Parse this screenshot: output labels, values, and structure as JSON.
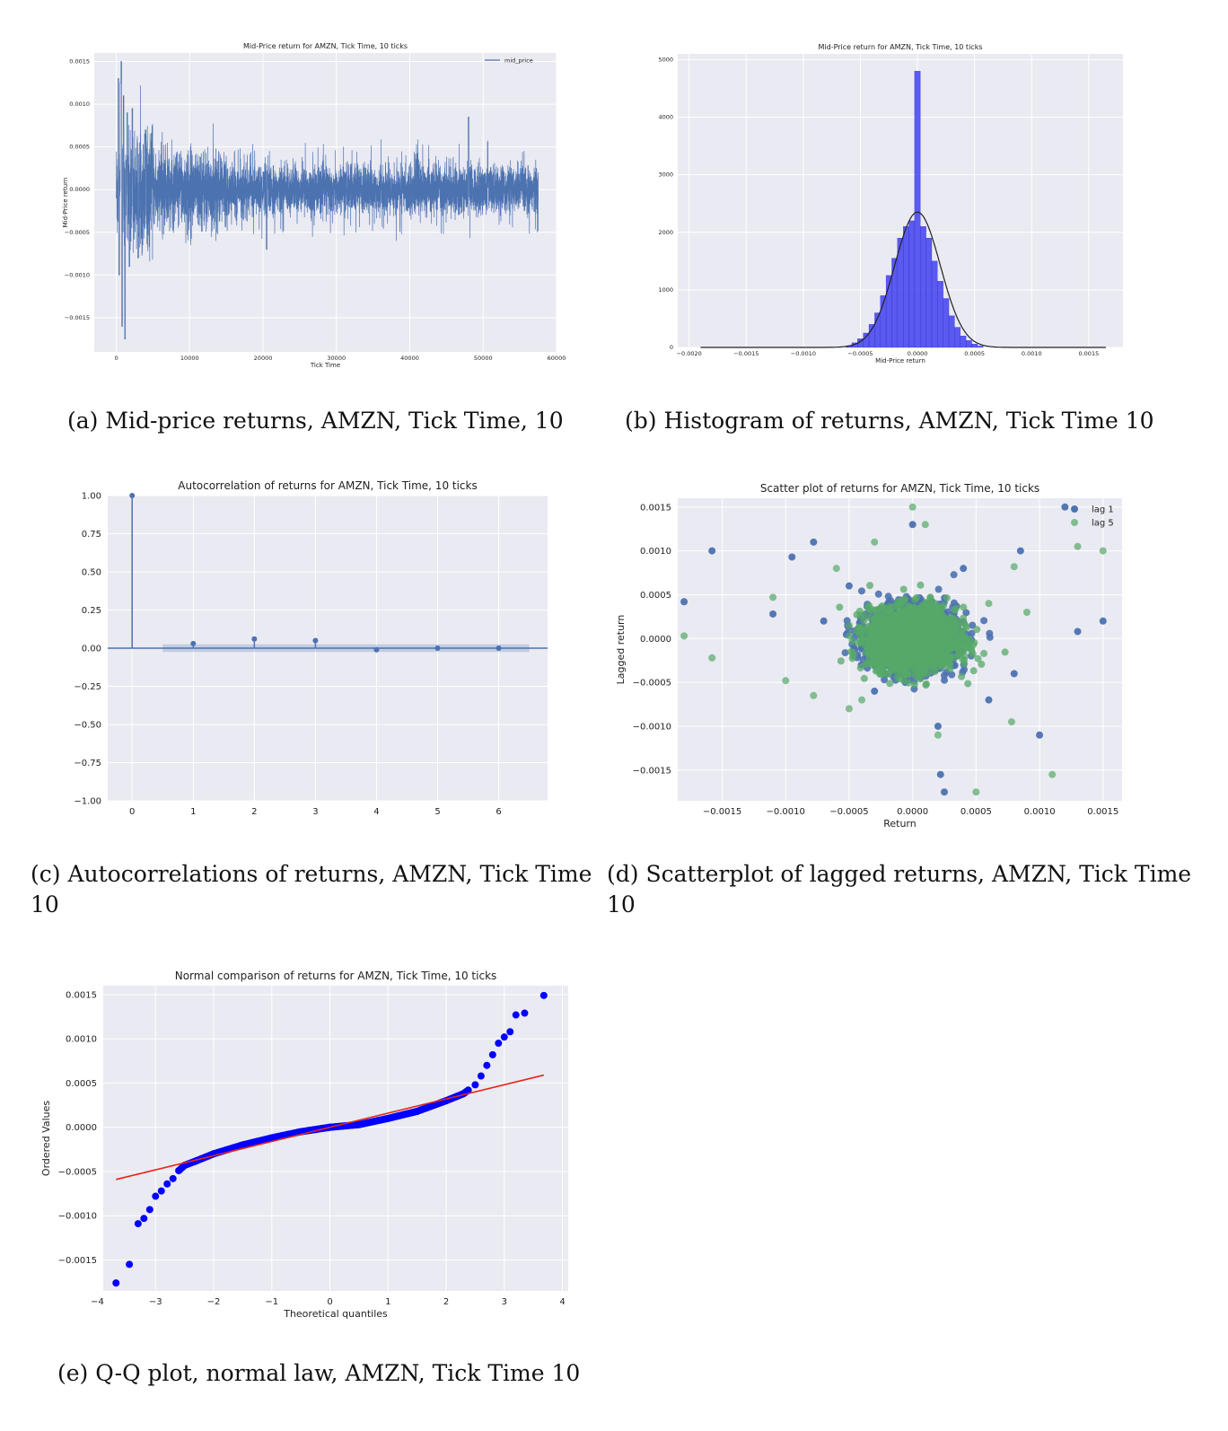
{
  "captions": {
    "a": "(a) Mid-price returns, AMZN, Tick Time, 10",
    "b": "(b) Histogram of returns, AMZN, Tick Time 10",
    "c_line1": "(c) Autocorrelations of returns, AMZN, Tick Time",
    "c_line2": "10",
    "d_line1": "(d) Scatterplot of lagged returns, AMZN, Tick Time",
    "d_line2": "10",
    "e": "(e) Q-Q plot, normal law, AMZN, Tick Time 10"
  },
  "colors": {
    "plot_bg": "#eaeaf2",
    "grid": "#ffffff",
    "seaborn_blue": "#4c72b0",
    "seaborn_green": "#55a868",
    "hist_blue": "#3b3bf0",
    "qq_blue": "#0000ff",
    "qq_red": "#e3271b"
  },
  "chart_data": [
    {
      "id": "a",
      "type": "line",
      "title": "Mid-Price return for AMZN, Tick Time, 10 ticks",
      "xlabel": "Tick Time",
      "ylabel": "Mid-Price return",
      "xlim": [
        -3000,
        60000
      ],
      "ylim": [
        -0.0019,
        0.0016
      ],
      "xticks": [
        0,
        10000,
        20000,
        30000,
        40000,
        50000,
        60000
      ],
      "xtick_labels": [
        "0",
        "10000",
        "20000",
        "30000",
        "40000",
        "50000",
        "60000"
      ],
      "yticks": [
        -0.0015,
        -0.001,
        -0.0005,
        0,
        0.0005,
        0.001,
        0.0015
      ],
      "ytick_labels": [
        "−0.0015",
        "−0.0010",
        "−0.0005",
        "0.0000",
        "0.0005",
        "0.0010",
        "0.0015"
      ],
      "legend": {
        "position": "top-right",
        "entries": [
          "mid_price"
        ]
      },
      "grid": true,
      "series": [
        {
          "name": "mid_price",
          "x_range": [
            0,
            57500
          ],
          "n_points": 5750,
          "spikes": [
            {
              "x": 300,
              "y": 0.0013
            },
            {
              "x": 400,
              "y": -0.001
            },
            {
              "x": 600,
              "y": 0.00125
            },
            {
              "x": 700,
              "y": 0.0015
            },
            {
              "x": 800,
              "y": -0.0016
            },
            {
              "x": 1000,
              "y": 0.0011
            },
            {
              "x": 1200,
              "y": -0.00175
            },
            {
              "x": 1500,
              "y": 0.0009
            },
            {
              "x": 1800,
              "y": -0.0009
            },
            {
              "x": 2200,
              "y": 0.00095
            },
            {
              "x": 3000,
              "y": -0.0008
            },
            {
              "x": 4000,
              "y": 0.0007
            },
            {
              "x": 48000,
              "y": 0.00085
            },
            {
              "x": 20500,
              "y": -0.0007
            }
          ]
        }
      ]
    },
    {
      "id": "b",
      "type": "bar",
      "title": "Mid-Price return for AMZN, Tick Time, 10 ticks",
      "xlabel": "Mid-Price return",
      "ylabel": "",
      "xlim": [
        -0.0021,
        0.0018
      ],
      "ylim": [
        0,
        5100
      ],
      "xticks": [
        -0.002,
        -0.0015,
        -0.001,
        -0.0005,
        0,
        0.0005,
        0.001,
        0.0015
      ],
      "xtick_labels": [
        "−0.0020",
        "−0.0015",
        "−0.0010",
        "−0.0005",
        "0.0000",
        "0.0005",
        "0.0010",
        "0.0015"
      ],
      "yticks": [
        0,
        1000,
        2000,
        3000,
        4000,
        5000
      ],
      "ytick_labels": [
        "0",
        "1000",
        "2000",
        "3000",
        "4000",
        "5000"
      ],
      "grid": true,
      "bin_width": 5e-05,
      "bins": [
        {
          "x": -0.0006,
          "count": 30
        },
        {
          "x": -0.00055,
          "count": 80
        },
        {
          "x": -0.0005,
          "count": 150
        },
        {
          "x": -0.00045,
          "count": 250
        },
        {
          "x": -0.0004,
          "count": 400
        },
        {
          "x": -0.00035,
          "count": 600
        },
        {
          "x": -0.0003,
          "count": 900
        },
        {
          "x": -0.00025,
          "count": 1250
        },
        {
          "x": -0.0002,
          "count": 1550
        },
        {
          "x": -0.00015,
          "count": 1900
        },
        {
          "x": -0.0001,
          "count": 2100
        },
        {
          "x": -5e-05,
          "count": 2200
        },
        {
          "x": 0,
          "count": 4800
        },
        {
          "x": 5e-05,
          "count": 2100
        },
        {
          "x": 0.0001,
          "count": 1900
        },
        {
          "x": 0.00015,
          "count": 1500
        },
        {
          "x": 0.0002,
          "count": 1150
        },
        {
          "x": 0.00025,
          "count": 850
        },
        {
          "x": 0.0003,
          "count": 550
        },
        {
          "x": 0.00035,
          "count": 350
        },
        {
          "x": 0.0004,
          "count": 200
        },
        {
          "x": 0.00045,
          "count": 120
        },
        {
          "x": 0.0005,
          "count": 60
        },
        {
          "x": 0.00055,
          "count": 25
        }
      ],
      "normal_curve": {
        "mean": 0,
        "std": 0.0002,
        "peak": 2350,
        "x_range": [
          -0.0019,
          0.00165
        ]
      }
    },
    {
      "id": "c",
      "type": "stem",
      "title": "Autocorrelation of returns for AMZN, Tick Time, 10 ticks",
      "xlabel": "",
      "ylabel": "",
      "xlim": [
        -0.4,
        6.8
      ],
      "ylim": [
        -1.0,
        1.0
      ],
      "xticks": [
        0,
        1,
        2,
        3,
        4,
        5,
        6
      ],
      "xtick_labels": [
        "0",
        "1",
        "2",
        "3",
        "4",
        "5",
        "6"
      ],
      "yticks": [
        -1.0,
        -0.75,
        -0.5,
        -0.25,
        0,
        0.25,
        0.5,
        0.75,
        1.0
      ],
      "ytick_labels": [
        "−1.00",
        "−0.75",
        "−0.50",
        "−0.25",
        "0.00",
        "0.25",
        "0.50",
        "0.75",
        "1.00"
      ],
      "grid": true,
      "lags": [
        0,
        1,
        2,
        3,
        4,
        5,
        6
      ],
      "values": [
        1.0,
        0.03,
        0.06,
        0.05,
        -0.01,
        0.0,
        0.0
      ],
      "confidence_band": {
        "x_range": [
          0.5,
          6.5
        ],
        "lower": -0.025,
        "upper": 0.025
      }
    },
    {
      "id": "d",
      "type": "scatter",
      "title": "Scatter plot of returns for AMZN, Tick Time, 10 ticks",
      "xlabel": "Return",
      "ylabel": "Lagged return",
      "xlim": [
        -0.00185,
        0.00165
      ],
      "ylim": [
        -0.00185,
        0.0016
      ],
      "xticks": [
        -0.0015,
        -0.001,
        -0.0005,
        0,
        0.0005,
        0.001,
        0.0015
      ],
      "xtick_labels": [
        "−0.0015",
        "−0.0010",
        "−0.0005",
        "0.0000",
        "0.0005",
        "0.0010",
        "0.0015"
      ],
      "yticks": [
        -0.0015,
        -0.001,
        -0.0005,
        0,
        0.0005,
        0.001,
        0.0015
      ],
      "ytick_labels": [
        "−0.0015",
        "−0.0010",
        "−0.0005",
        "0.0000",
        "0.0005",
        "0.0010",
        "0.0015"
      ],
      "legend": {
        "position": "top-right",
        "entries": [
          "lag 1",
          "lag 5"
        ]
      },
      "grid": true,
      "series": [
        {
          "name": "lag 1",
          "outliers": [
            [
              -0.0018,
              0.00042
            ],
            [
              -0.00158,
              0.001
            ],
            [
              -0.0011,
              0.00028
            ],
            [
              -0.00095,
              0.00093
            ],
            [
              -0.00078,
              0.0011
            ],
            [
              -0.0005,
              0.0006
            ],
            [
              0.0,
              0.0013
            ],
            [
              0.0012,
              0.0015
            ],
            [
              0.00022,
              -0.00155
            ],
            [
              0.00025,
              -0.00175
            ],
            [
              0.001,
              -0.0011
            ],
            [
              0.0015,
              0.0002
            ],
            [
              0.0013,
              8e-05
            ],
            [
              0.00085,
              0.001
            ],
            [
              0.0004,
              0.0008
            ],
            [
              -0.0003,
              -0.0006
            ],
            [
              0.0006,
              -0.0007
            ],
            [
              0.0008,
              -0.0004
            ],
            [
              -0.0007,
              0.0002
            ],
            [
              0.0002,
              -0.001
            ]
          ]
        },
        {
          "name": "lag 5",
          "outliers": [
            [
              -0.0018,
              3e-05
            ],
            [
              -0.00158,
              -0.00022
            ],
            [
              -0.0011,
              0.00047
            ],
            [
              -0.001,
              -0.00048
            ],
            [
              -0.00078,
              -0.00065
            ],
            [
              0.0,
              0.0015
            ],
            [
              0.0001,
              0.0013
            ],
            [
              -0.0003,
              0.0011
            ],
            [
              0.0015,
              0.001
            ],
            [
              0.0013,
              0.00105
            ],
            [
              0.0011,
              -0.00155
            ],
            [
              0.0005,
              -0.00175
            ],
            [
              0.00078,
              -0.00095
            ],
            [
              0.0008,
              0.00082
            ],
            [
              0.0002,
              -0.0011
            ],
            [
              -0.0006,
              0.0008
            ],
            [
              -0.0005,
              -0.0008
            ],
            [
              0.0009,
              0.0003
            ],
            [
              0.0006,
              0.0004
            ],
            [
              -0.0004,
              -0.0007
            ]
          ]
        }
      ]
    },
    {
      "id": "e",
      "type": "scatter",
      "title": "Normal comparison of returns for AMZN, Tick Time, 10 ticks",
      "xlabel": "Theoretical quantiles",
      "ylabel": "Ordered Values",
      "xlim": [
        -3.9,
        4.1
      ],
      "ylim": [
        -0.00185,
        0.0016
      ],
      "xticks": [
        -4,
        -3,
        -2,
        -1,
        0,
        1,
        2,
        3,
        4
      ],
      "xtick_labels": [
        "−4",
        "−3",
        "−2",
        "−1",
        "0",
        "1",
        "2",
        "3",
        "4"
      ],
      "yticks": [
        -0.0015,
        -0.001,
        -0.0005,
        0,
        0.0005,
        0.001,
        0.0015
      ],
      "ytick_labels": [
        "−0.0015",
        "−0.0010",
        "−0.0005",
        "0.0000",
        "0.0005",
        "0.0010",
        "0.0015"
      ],
      "grid": true,
      "points": [
        [
          -3.68,
          -0.00176
        ],
        [
          -3.45,
          -0.00155
        ],
        [
          -3.3,
          -0.00109
        ],
        [
          -3.2,
          -0.00103
        ],
        [
          -3.1,
          -0.00093
        ],
        [
          -3.0,
          -0.00078
        ],
        [
          -2.9,
          -0.00072
        ],
        [
          -2.8,
          -0.00064
        ],
        [
          -2.7,
          -0.00058
        ],
        [
          -2.6,
          -0.00049
        ],
        [
          -2.5,
          -0.00043
        ],
        [
          -2.3,
          -0.00038
        ],
        [
          -2.0,
          -0.0003
        ],
        [
          -1.5,
          -0.0002
        ],
        [
          -1.0,
          -0.00012
        ],
        [
          -0.5,
          -5e-05
        ],
        [
          0.0,
          0.0
        ],
        [
          0.5,
          3e-05
        ],
        [
          1.0,
          0.0001
        ],
        [
          1.5,
          0.00018
        ],
        [
          2.0,
          0.0003
        ],
        [
          2.3,
          0.00038
        ],
        [
          2.5,
          0.00048
        ],
        [
          2.6,
          0.00058
        ],
        [
          2.7,
          0.0007
        ],
        [
          2.8,
          0.00082
        ],
        [
          2.9,
          0.00095
        ],
        [
          3.0,
          0.00102
        ],
        [
          3.1,
          0.00108
        ],
        [
          3.2,
          0.00127
        ],
        [
          3.35,
          0.00129
        ],
        [
          3.68,
          0.00149
        ]
      ],
      "fit_line": {
        "x": [
          -3.68,
          3.68
        ],
        "y": [
          -0.00059,
          0.00059
        ]
      }
    }
  ]
}
